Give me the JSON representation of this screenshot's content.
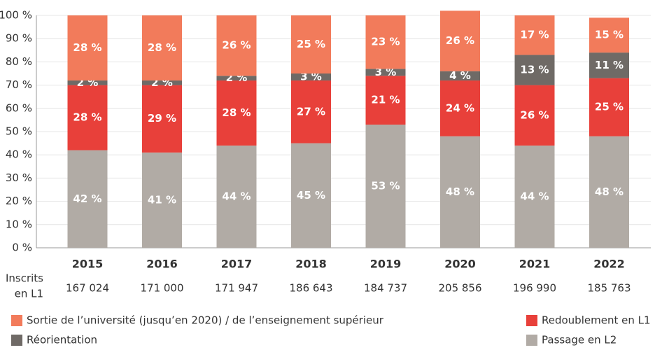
{
  "chart_data": {
    "type": "stacked_bar",
    "categories": [
      "2015",
      "2016",
      "2017",
      "2018",
      "2019",
      "2020",
      "2021",
      "2022"
    ],
    "series": [
      {
        "name": "Passage en L2",
        "color": "#b1aba5",
        "values": [
          42,
          41,
          44,
          45,
          53,
          48,
          44,
          48
        ],
        "value_labels": [
          "42 %",
          "41 %",
          "44 %",
          "45 %",
          "53 %",
          "48 %",
          "44 %",
          "48 %"
        ]
      },
      {
        "name": "Redoublement en L1",
        "color": "#e8403a",
        "values": [
          28,
          29,
          28,
          27,
          21,
          24,
          26,
          25
        ],
        "value_labels": [
          "28 %",
          "29 %",
          "28 %",
          "27 %",
          "21 %",
          "24 %",
          "26 %",
          "25 %"
        ]
      },
      {
        "name": "Réorientation",
        "color": "#6f6a66",
        "values": [
          2,
          2,
          2,
          3,
          3,
          4,
          13,
          11
        ],
        "value_labels": [
          "2 %",
          "2 %",
          "2 %",
          "3 %",
          "3 %",
          "4 %",
          "13 %",
          "11 %"
        ]
      },
      {
        "name": "Sortie de l’université (jusqu’en 2020) / de l’enseignement supérieur",
        "color": "#f27b5b",
        "values": [
          28,
          28,
          26,
          25,
          23,
          26,
          17,
          15
        ],
        "value_labels": [
          "28 %",
          "28 %",
          "26 %",
          "25 %",
          "23 %",
          "26 %",
          "17 %",
          "15 %"
        ]
      }
    ],
    "ylim": [
      0,
      100
    ],
    "yticks": [
      {
        "value": 0,
        "label": "0 %"
      },
      {
        "value": 10,
        "label": "10 %"
      },
      {
        "value": 20,
        "label": "20 %"
      },
      {
        "value": 30,
        "label": "30 %"
      },
      {
        "value": 40,
        "label": "40 %"
      },
      {
        "value": 50,
        "label": "50 %"
      },
      {
        "value": 60,
        "label": "60 %"
      },
      {
        "value": 70,
        "label": "70 %"
      },
      {
        "value": 80,
        "label": "80 %"
      },
      {
        "value": 90,
        "label": "90 %"
      },
      {
        "value": 100,
        "label": "100 %"
      }
    ],
    "grid": true,
    "enrolled": {
      "label": [
        "Inscrits",
        "en L1"
      ],
      "values": [
        167024,
        171000,
        171947,
        186643,
        184737,
        205856,
        196990,
        185763
      ],
      "value_labels": [
        "167 024",
        "171 000",
        "171 947",
        "186 643",
        "184 737",
        "205 856",
        "196 990",
        "185 763"
      ]
    }
  }
}
